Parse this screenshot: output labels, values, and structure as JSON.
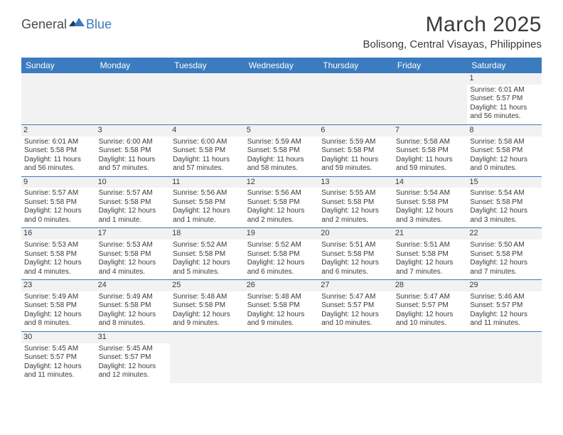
{
  "logo": {
    "text1": "General",
    "text2": "Blue"
  },
  "title": "March 2025",
  "location": "Bolisong, Central Visayas, Philippines",
  "colors": {
    "header_bg": "#3b7bbf",
    "header_text": "#ffffff",
    "spacer_bg": "#f2f2f2",
    "text": "#3a3a3a",
    "rule": "#3b7bbf"
  },
  "dayNames": [
    "Sunday",
    "Monday",
    "Tuesday",
    "Wednesday",
    "Thursday",
    "Friday",
    "Saturday"
  ],
  "weeks": [
    [
      {
        "empty": true
      },
      {
        "empty": true
      },
      {
        "empty": true
      },
      {
        "empty": true
      },
      {
        "empty": true
      },
      {
        "empty": true
      },
      {
        "day": "1",
        "sunrise": "Sunrise: 6:01 AM",
        "sunset": "Sunset: 5:57 PM",
        "daylight1": "Daylight: 11 hours",
        "daylight2": "and 56 minutes."
      }
    ],
    [
      {
        "day": "2",
        "sunrise": "Sunrise: 6:01 AM",
        "sunset": "Sunset: 5:58 PM",
        "daylight1": "Daylight: 11 hours",
        "daylight2": "and 56 minutes."
      },
      {
        "day": "3",
        "sunrise": "Sunrise: 6:00 AM",
        "sunset": "Sunset: 5:58 PM",
        "daylight1": "Daylight: 11 hours",
        "daylight2": "and 57 minutes."
      },
      {
        "day": "4",
        "sunrise": "Sunrise: 6:00 AM",
        "sunset": "Sunset: 5:58 PM",
        "daylight1": "Daylight: 11 hours",
        "daylight2": "and 57 minutes."
      },
      {
        "day": "5",
        "sunrise": "Sunrise: 5:59 AM",
        "sunset": "Sunset: 5:58 PM",
        "daylight1": "Daylight: 11 hours",
        "daylight2": "and 58 minutes."
      },
      {
        "day": "6",
        "sunrise": "Sunrise: 5:59 AM",
        "sunset": "Sunset: 5:58 PM",
        "daylight1": "Daylight: 11 hours",
        "daylight2": "and 59 minutes."
      },
      {
        "day": "7",
        "sunrise": "Sunrise: 5:58 AM",
        "sunset": "Sunset: 5:58 PM",
        "daylight1": "Daylight: 11 hours",
        "daylight2": "and 59 minutes."
      },
      {
        "day": "8",
        "sunrise": "Sunrise: 5:58 AM",
        "sunset": "Sunset: 5:58 PM",
        "daylight1": "Daylight: 12 hours",
        "daylight2": "and 0 minutes."
      }
    ],
    [
      {
        "day": "9",
        "sunrise": "Sunrise: 5:57 AM",
        "sunset": "Sunset: 5:58 PM",
        "daylight1": "Daylight: 12 hours",
        "daylight2": "and 0 minutes."
      },
      {
        "day": "10",
        "sunrise": "Sunrise: 5:57 AM",
        "sunset": "Sunset: 5:58 PM",
        "daylight1": "Daylight: 12 hours",
        "daylight2": "and 1 minute."
      },
      {
        "day": "11",
        "sunrise": "Sunrise: 5:56 AM",
        "sunset": "Sunset: 5:58 PM",
        "daylight1": "Daylight: 12 hours",
        "daylight2": "and 1 minute."
      },
      {
        "day": "12",
        "sunrise": "Sunrise: 5:56 AM",
        "sunset": "Sunset: 5:58 PM",
        "daylight1": "Daylight: 12 hours",
        "daylight2": "and 2 minutes."
      },
      {
        "day": "13",
        "sunrise": "Sunrise: 5:55 AM",
        "sunset": "Sunset: 5:58 PM",
        "daylight1": "Daylight: 12 hours",
        "daylight2": "and 2 minutes."
      },
      {
        "day": "14",
        "sunrise": "Sunrise: 5:54 AM",
        "sunset": "Sunset: 5:58 PM",
        "daylight1": "Daylight: 12 hours",
        "daylight2": "and 3 minutes."
      },
      {
        "day": "15",
        "sunrise": "Sunrise: 5:54 AM",
        "sunset": "Sunset: 5:58 PM",
        "daylight1": "Daylight: 12 hours",
        "daylight2": "and 3 minutes."
      }
    ],
    [
      {
        "day": "16",
        "sunrise": "Sunrise: 5:53 AM",
        "sunset": "Sunset: 5:58 PM",
        "daylight1": "Daylight: 12 hours",
        "daylight2": "and 4 minutes."
      },
      {
        "day": "17",
        "sunrise": "Sunrise: 5:53 AM",
        "sunset": "Sunset: 5:58 PM",
        "daylight1": "Daylight: 12 hours",
        "daylight2": "and 4 minutes."
      },
      {
        "day": "18",
        "sunrise": "Sunrise: 5:52 AM",
        "sunset": "Sunset: 5:58 PM",
        "daylight1": "Daylight: 12 hours",
        "daylight2": "and 5 minutes."
      },
      {
        "day": "19",
        "sunrise": "Sunrise: 5:52 AM",
        "sunset": "Sunset: 5:58 PM",
        "daylight1": "Daylight: 12 hours",
        "daylight2": "and 6 minutes."
      },
      {
        "day": "20",
        "sunrise": "Sunrise: 5:51 AM",
        "sunset": "Sunset: 5:58 PM",
        "daylight1": "Daylight: 12 hours",
        "daylight2": "and 6 minutes."
      },
      {
        "day": "21",
        "sunrise": "Sunrise: 5:51 AM",
        "sunset": "Sunset: 5:58 PM",
        "daylight1": "Daylight: 12 hours",
        "daylight2": "and 7 minutes."
      },
      {
        "day": "22",
        "sunrise": "Sunrise: 5:50 AM",
        "sunset": "Sunset: 5:58 PM",
        "daylight1": "Daylight: 12 hours",
        "daylight2": "and 7 minutes."
      }
    ],
    [
      {
        "day": "23",
        "sunrise": "Sunrise: 5:49 AM",
        "sunset": "Sunset: 5:58 PM",
        "daylight1": "Daylight: 12 hours",
        "daylight2": "and 8 minutes."
      },
      {
        "day": "24",
        "sunrise": "Sunrise: 5:49 AM",
        "sunset": "Sunset: 5:58 PM",
        "daylight1": "Daylight: 12 hours",
        "daylight2": "and 8 minutes."
      },
      {
        "day": "25",
        "sunrise": "Sunrise: 5:48 AM",
        "sunset": "Sunset: 5:58 PM",
        "daylight1": "Daylight: 12 hours",
        "daylight2": "and 9 minutes."
      },
      {
        "day": "26",
        "sunrise": "Sunrise: 5:48 AM",
        "sunset": "Sunset: 5:58 PM",
        "daylight1": "Daylight: 12 hours",
        "daylight2": "and 9 minutes."
      },
      {
        "day": "27",
        "sunrise": "Sunrise: 5:47 AM",
        "sunset": "Sunset: 5:57 PM",
        "daylight1": "Daylight: 12 hours",
        "daylight2": "and 10 minutes."
      },
      {
        "day": "28",
        "sunrise": "Sunrise: 5:47 AM",
        "sunset": "Sunset: 5:57 PM",
        "daylight1": "Daylight: 12 hours",
        "daylight2": "and 10 minutes."
      },
      {
        "day": "29",
        "sunrise": "Sunrise: 5:46 AM",
        "sunset": "Sunset: 5:57 PM",
        "daylight1": "Daylight: 12 hours",
        "daylight2": "and 11 minutes."
      }
    ],
    [
      {
        "day": "30",
        "sunrise": "Sunrise: 5:45 AM",
        "sunset": "Sunset: 5:57 PM",
        "daylight1": "Daylight: 12 hours",
        "daylight2": "and 11 minutes."
      },
      {
        "day": "31",
        "sunrise": "Sunrise: 5:45 AM",
        "sunset": "Sunset: 5:57 PM",
        "daylight1": "Daylight: 12 hours",
        "daylight2": "and 12 minutes."
      },
      {
        "empty": true
      },
      {
        "empty": true
      },
      {
        "empty": true
      },
      {
        "empty": true
      },
      {
        "empty": true
      }
    ]
  ]
}
